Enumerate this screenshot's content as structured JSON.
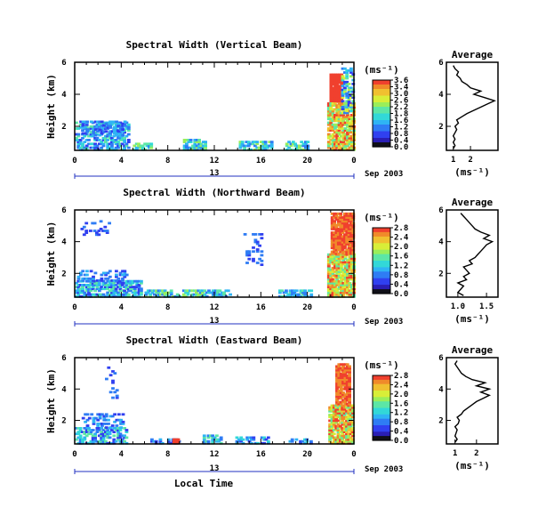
{
  "chart_data": [
    {
      "type": "heatmap",
      "title": "Spectral Width (Vertical Beam)",
      "ylabel": "Height (km)",
      "xticks": [
        "0",
        "4",
        "8",
        "12",
        "16",
        "20",
        "0"
      ],
      "yticks": [
        "2",
        "4",
        "6"
      ],
      "xlim": [
        0,
        24
      ],
      "ylim": [
        0.5,
        6
      ],
      "day_label": "13",
      "date_label": "Sep 2003",
      "colorbar": {
        "unit": "(ms⁻¹)",
        "ticks": [
          "3.6",
          "3.4",
          "3.0",
          "2.6",
          "2.2",
          "1.8",
          "1.6",
          "1.2",
          "0.8",
          "0.4",
          "0.0"
        ],
        "range": [
          0,
          3.6
        ]
      },
      "profile": {
        "title": "Average",
        "xlabel": "(ms⁻¹)",
        "xticks": [
          "1",
          "2"
        ],
        "xlim": [
          0.6,
          3.6
        ],
        "yticks": [
          "2",
          "4",
          "6"
        ],
        "heights": [
          0.6,
          0.8,
          1.0,
          1.2,
          1.4,
          1.6,
          1.8,
          2.0,
          2.2,
          2.4,
          2.6,
          2.8,
          3.0,
          3.2,
          3.4,
          3.6,
          3.8,
          4.0,
          4.2,
          4.4,
          4.6,
          4.8,
          5.0,
          5.2,
          5.4,
          5.6,
          5.8
        ],
        "values": [
          1.0,
          1.1,
          1.0,
          1.1,
          1.0,
          1.1,
          1.2,
          1.1,
          1.3,
          1.2,
          1.5,
          1.8,
          2.2,
          2.6,
          3.0,
          3.4,
          2.8,
          2.2,
          2.6,
          2.0,
          1.8,
          1.5,
          1.4,
          1.2,
          1.3,
          1.1,
          1.0
        ]
      }
    },
    {
      "type": "heatmap",
      "title": "Spectral Width (Northward Beam)",
      "ylabel": "Height (km)",
      "xticks": [
        "0",
        "4",
        "8",
        "12",
        "16",
        "20",
        "0"
      ],
      "yticks": [
        "2",
        "4",
        "6"
      ],
      "xlim": [
        0,
        24
      ],
      "ylim": [
        0.5,
        6
      ],
      "day_label": "13",
      "date_label": "Sep 2003",
      "colorbar": {
        "unit": "(ms⁻¹)",
        "ticks": [
          "2.8",
          "2.4",
          "2.0",
          "1.6",
          "1.2",
          "0.8",
          "0.4",
          "0.0"
        ],
        "range": [
          0,
          2.8
        ]
      },
      "profile": {
        "title": "Average",
        "xlabel": "(ms⁻¹)",
        "xticks": [
          "1.0",
          "1.5"
        ],
        "xlim": [
          0.8,
          1.7
        ],
        "yticks": [
          "2",
          "4",
          "6"
        ],
        "heights": [
          0.6,
          0.8,
          1.0,
          1.2,
          1.4,
          1.6,
          1.8,
          2.0,
          2.2,
          2.4,
          2.6,
          2.8,
          3.0,
          3.2,
          3.4,
          3.6,
          3.8,
          4.0,
          4.2,
          4.4,
          4.6,
          4.8,
          5.0,
          5.2,
          5.4,
          5.6,
          5.8
        ],
        "values": [
          1.1,
          1.0,
          1.05,
          1.1,
          1.0,
          1.15,
          1.1,
          1.2,
          1.15,
          1.1,
          1.25,
          1.2,
          1.3,
          1.35,
          1.4,
          1.45,
          1.5,
          1.6,
          1.45,
          1.55,
          1.4,
          1.3,
          1.25,
          1.2,
          1.15,
          1.1,
          1.05
        ]
      }
    },
    {
      "type": "heatmap",
      "title": "Spectral Width (Eastward Beam)",
      "ylabel": "Height (km)",
      "xlabel": "Local Time",
      "xticks": [
        "0",
        "4",
        "8",
        "12",
        "16",
        "20",
        "0"
      ],
      "yticks": [
        "2",
        "4",
        "6"
      ],
      "xlim": [
        0,
        24
      ],
      "ylim": [
        0.5,
        6
      ],
      "day_label": "13",
      "date_label": "Sep 2003",
      "colorbar": {
        "unit": "(ms⁻¹)",
        "ticks": [
          "2.8",
          "2.4",
          "2.0",
          "1.6",
          "1.2",
          "0.8",
          "0.4",
          "0.0"
        ],
        "range": [
          0,
          2.8
        ]
      },
      "profile": {
        "title": "Average",
        "xlabel": "(ms⁻¹)",
        "xticks": [
          "1",
          "2"
        ],
        "xlim": [
          0.6,
          3.0
        ],
        "yticks": [
          "2",
          "4",
          "6"
        ],
        "heights": [
          0.6,
          0.8,
          1.0,
          1.2,
          1.4,
          1.6,
          1.8,
          2.0,
          2.2,
          2.4,
          2.6,
          2.8,
          3.0,
          3.2,
          3.4,
          3.6,
          3.8,
          4.0,
          4.2,
          4.4,
          4.6,
          4.8,
          5.0,
          5.2,
          5.4,
          5.6,
          5.8
        ],
        "values": [
          1.0,
          1.1,
          1.0,
          1.05,
          1.1,
          1.0,
          1.15,
          1.2,
          1.1,
          1.3,
          1.4,
          1.6,
          1.8,
          2.0,
          2.3,
          2.6,
          2.2,
          2.6,
          2.0,
          2.4,
          1.8,
          1.5,
          1.3,
          1.2,
          1.1,
          1.0,
          1.1
        ]
      }
    }
  ]
}
